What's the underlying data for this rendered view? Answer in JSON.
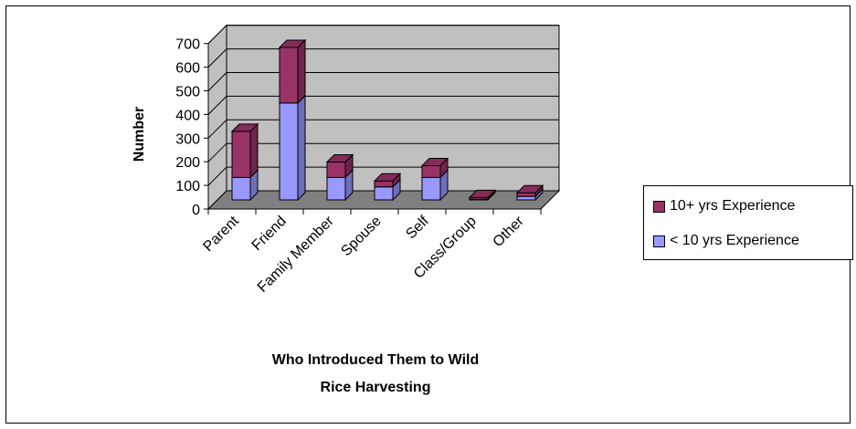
{
  "chart_data": {
    "type": "bar",
    "stacked": true,
    "three_d": true,
    "categories": [
      "Parent",
      "Friend",
      "Family Member",
      "Spouse",
      "Self",
      "Class/Group",
      "Other"
    ],
    "series": [
      {
        "name": "< 10 yrs Experience",
        "values": [
          95,
          410,
          95,
          55,
          95,
          3,
          15
        ],
        "color": "#9999ff"
      },
      {
        "name": "10+ yrs Experience",
        "values": [
          195,
          235,
          65,
          25,
          50,
          7,
          15
        ],
        "color": "#993366"
      }
    ],
    "title": "",
    "xlabel": "Who Introduced Them to Wild Rice Harvesting",
    "xlabel_lines": [
      "Who Introduced Them to Wild",
      "Rice Harvesting"
    ],
    "ylabel": "Number",
    "ylim": [
      0,
      700
    ],
    "yticks": [
      0,
      100,
      200,
      300,
      400,
      500,
      600,
      700
    ],
    "grid": true,
    "legend_position": "right",
    "colors": {
      "wall": "#c0c0c0",
      "floor": "#808080",
      "frame": "#000000"
    }
  }
}
